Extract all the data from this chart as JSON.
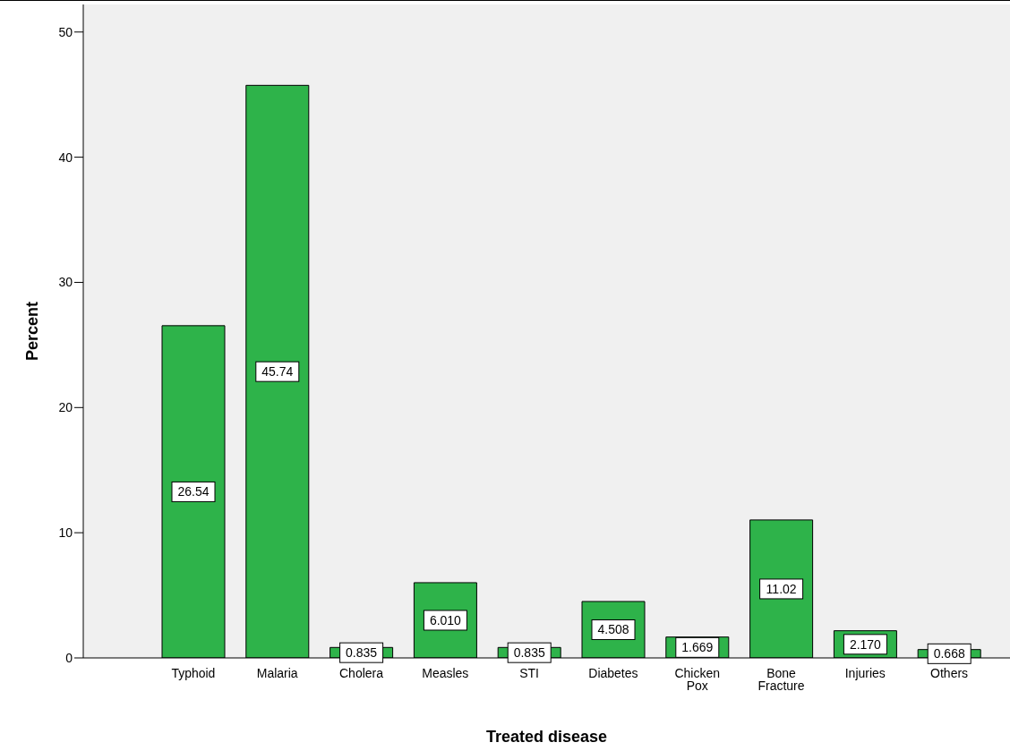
{
  "chart_data": {
    "type": "bar",
    "xlabel": "Treated disease",
    "ylabel": "Percent",
    "categories": [
      "Typhoid",
      "Malaria",
      "Cholera",
      "Measles",
      "STI",
      "Diabetes",
      "Chicken Pox",
      "Bone Fracture",
      "Injuries",
      "Others"
    ],
    "values": [
      26.54,
      45.74,
      0.835,
      6.01,
      0.835,
      4.508,
      1.669,
      11.02,
      2.17,
      0.668
    ],
    "value_labels": [
      "26.54",
      "45.74",
      "0.835",
      "6.010",
      "0.835",
      "4.508",
      "1.669",
      "11.02",
      "2.170",
      "0.668"
    ],
    "color": "#2eb34a",
    "ylim": [
      0,
      52.2
    ],
    "yticks": [
      0,
      10,
      20,
      30,
      40,
      50
    ],
    "grid": false
  }
}
